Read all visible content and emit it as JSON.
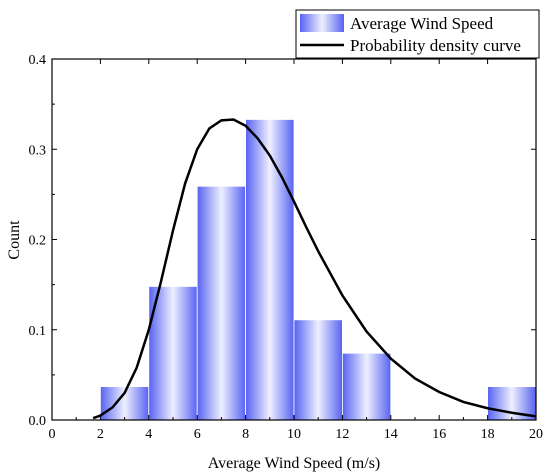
{
  "chart_data": {
    "type": "bar",
    "subtype": "histogram with density curve",
    "xlabel": "Average Wind Speed (m/s)",
    "ylabel": "Count",
    "xlim": [
      0,
      20
    ],
    "ylim": [
      0,
      0.4
    ],
    "x_ticks": [
      "0",
      "2",
      "4",
      "6",
      "8",
      "10",
      "12",
      "14",
      "16",
      "18",
      "20"
    ],
    "y_ticks": [
      "0.0",
      "0.1",
      "0.2",
      "0.3",
      "0.4"
    ],
    "grid": false,
    "legend_position": "top-right",
    "bins": [
      {
        "x_start": 2,
        "x_end": 4,
        "value": 0.037
      },
      {
        "x_start": 4,
        "x_end": 6,
        "value": 0.148
      },
      {
        "x_start": 6,
        "x_end": 8,
        "value": 0.259
      },
      {
        "x_start": 8,
        "x_end": 10,
        "value": 0.333
      },
      {
        "x_start": 10,
        "x_end": 12,
        "value": 0.111
      },
      {
        "x_start": 12,
        "x_end": 14,
        "value": 0.074
      },
      {
        "x_start": 18,
        "x_end": 20,
        "value": 0.037
      }
    ],
    "curve": {
      "x": [
        1.7,
        2,
        2.5,
        3,
        3.5,
        4,
        4.5,
        5,
        5.5,
        6,
        6.5,
        7,
        7.5,
        8,
        8.5,
        9,
        9.5,
        10,
        10.5,
        11,
        12,
        13,
        14,
        15,
        16,
        17,
        18,
        19,
        20
      ],
      "y": [
        0.002,
        0.005,
        0.014,
        0.03,
        0.058,
        0.1,
        0.153,
        0.21,
        0.262,
        0.3,
        0.323,
        0.332,
        0.333,
        0.326,
        0.312,
        0.293,
        0.269,
        0.242,
        0.214,
        0.187,
        0.138,
        0.098,
        0.068,
        0.046,
        0.031,
        0.02,
        0.013,
        0.008,
        0.004
      ]
    },
    "series": [
      {
        "name": "Average Wind Speed",
        "kind": "bars",
        "color": "#6470F2"
      },
      {
        "name": "Probability density curve",
        "kind": "line",
        "color": "#000000"
      }
    ]
  }
}
